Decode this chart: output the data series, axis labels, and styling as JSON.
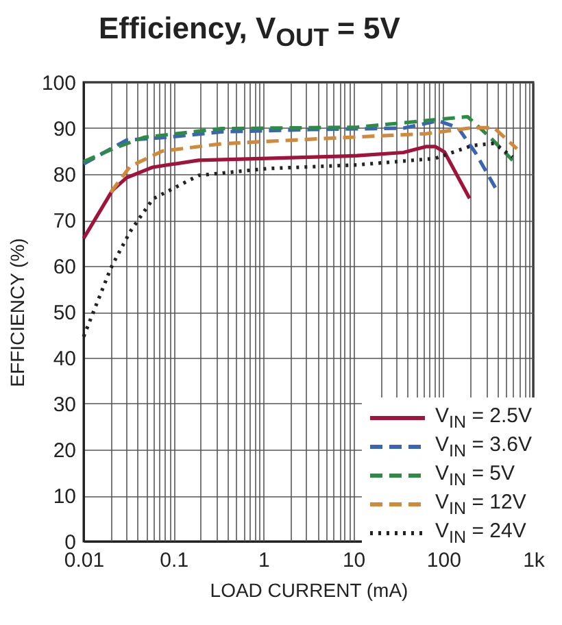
{
  "chart_data": {
    "type": "line",
    "title": "Efficiency, V$_{OUT}$ = 5V",
    "xlabel": "LOAD CURRENT (mA)",
    "ylabel": "EFFICIENCY (%)",
    "log": "x",
    "grid": true,
    "legend": "bottom right",
    "marker": "none",
    "xlim": [
      0.01,
      1000
    ],
    "ylim": [
      0,
      100
    ],
    "yticks": [
      0,
      10,
      20,
      30,
      40,
      50,
      60,
      70,
      80,
      90,
      100
    ],
    "xticks": [
      0.01,
      {
        "value": 0.02,
        "label": null
      },
      {
        "value": 0.03,
        "label": null
      },
      {
        "value": 0.04,
        "label": null
      },
      {
        "value": 0.05,
        "label": null
      },
      {
        "value": 0.06,
        "label": null
      },
      {
        "value": 0.07,
        "label": null
      },
      {
        "value": 0.08,
        "label": null
      },
      {
        "value": 0.09,
        "label": null
      },
      0.1,
      {
        "value": 0.2,
        "label": null
      },
      {
        "value": 0.3,
        "label": null
      },
      {
        "value": 0.4,
        "label": null
      },
      {
        "value": 0.5,
        "label": null
      },
      {
        "value": 0.6,
        "label": null
      },
      {
        "value": 0.7,
        "label": null
      },
      {
        "value": 0.8,
        "label": null
      },
      {
        "value": 0.9,
        "label": null
      },
      1,
      {
        "value": 2,
        "label": null
      },
      {
        "value": 3,
        "label": null
      },
      {
        "value": 4,
        "label": null
      },
      {
        "value": 5,
        "label": null
      },
      {
        "value": 6,
        "label": null
      },
      {
        "value": 7,
        "label": null
      },
      {
        "value": 8,
        "label": null
      },
      {
        "value": 9,
        "label": null
      },
      10,
      {
        "value": 20,
        "label": null
      },
      {
        "value": 30,
        "label": null
      },
      {
        "value": 40,
        "label": null
      },
      {
        "value": 50,
        "label": null
      },
      {
        "value": 60,
        "label": null
      },
      {
        "value": 70,
        "label": null
      },
      {
        "value": 80,
        "label": null
      },
      {
        "value": 90,
        "label": null
      },
      100,
      {
        "value": 200,
        "label": null
      },
      {
        "value": 300,
        "label": null
      },
      {
        "value": 400,
        "label": null
      },
      {
        "value": 500,
        "label": null
      },
      {
        "value": 600,
        "label": null
      },
      {
        "value": 700,
        "label": null
      },
      {
        "value": 800,
        "label": null
      },
      {
        "value": 900,
        "label": null
      },
      {
        "value": 1000,
        "label": "1k"
      }
    ],
    "series": [
      {
        "name": "V$_{IN}$ = 2.5V",
        "color": "#a0143c",
        "line_style": "solid",
        "x": [
          0.01,
          0.021,
          0.03,
          0.059,
          0.19,
          1.1,
          11,
          36,
          65,
          81,
          103,
          196
        ],
        "values": [
          66,
          76.5,
          79.2,
          81.5,
          83,
          83.4,
          84,
          84.7,
          86,
          86,
          84.8,
          74.7
        ]
      },
      {
        "name": "V$_{IN}$ = 3.6V",
        "color": "#3a64b4",
        "line_style": "dashed",
        "x": [
          0.01,
          0.03,
          0.084,
          0.34,
          3.4,
          36,
          88,
          146,
          230,
          398
        ],
        "values": [
          82.2,
          87.4,
          88,
          89.2,
          89.7,
          90,
          91.6,
          90.1,
          84.5,
          76.3
        ]
      },
      {
        "name": "V$_{IN}$ = 5V",
        "color": "#2e8b46",
        "line_style": "dashed",
        "x": [
          0.01,
          0.021,
          0.047,
          0.34,
          11,
          88,
          186,
          331,
          590
        ],
        "values": [
          82.7,
          85.5,
          88,
          89.9,
          90.2,
          91.9,
          92.5,
          88,
          83
        ]
      },
      {
        "name": "V$_{IN}$ = 12V",
        "color": "#d08a3c",
        "line_style": "dashed",
        "x": [
          0.02,
          0.033,
          0.075,
          0.34,
          3.4,
          65,
          209,
          366,
          660
        ],
        "values": [
          76,
          81.7,
          85,
          86.6,
          87.6,
          88.8,
          90.1,
          90.1,
          85.5
        ]
      },
      {
        "name": "V$_{IN}$ = 24V",
        "color": "#222222",
        "line_style": "dotted",
        "x": [
          0.01,
          0.0196,
          0.021,
          0.033,
          0.059,
          0.19,
          1.1,
          11,
          81,
          209,
          366,
          590
        ],
        "values": [
          44.6,
          59,
          60.3,
          67.5,
          74.6,
          79.7,
          81.2,
          82,
          83.4,
          86.2,
          86.7,
          83.7
        ]
      }
    ]
  }
}
